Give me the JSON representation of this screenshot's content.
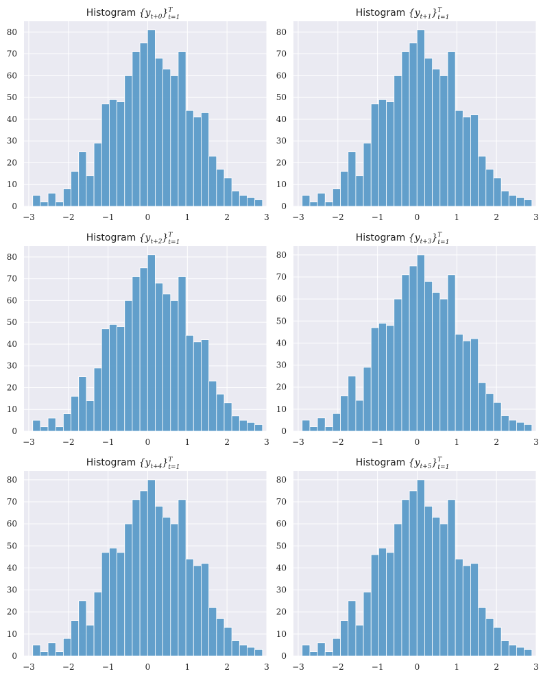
{
  "chart_data": [
    {
      "type": "bar",
      "title_prefix": "Histogram",
      "title_math": "{y",
      "title_sub": "t+0",
      "title_close": "}",
      "title_sup": "T",
      "title_lower": "t=1",
      "bin_start": -2.9,
      "bin_width": 0.1931,
      "values": [
        5,
        2,
        6,
        2,
        8,
        16,
        25,
        14,
        29,
        47,
        49,
        48,
        60,
        71,
        75,
        81,
        68,
        63,
        60,
        71,
        44,
        41,
        43,
        23,
        17,
        13,
        7,
        5,
        4,
        3
      ],
      "xlim": [
        -3.12,
        3.0
      ],
      "ylim": [
        0,
        85
      ],
      "xticks": [
        -3,
        -2,
        -1,
        0,
        1,
        2,
        3
      ],
      "yticks": [
        0,
        10,
        20,
        30,
        40,
        50,
        60,
        70,
        80
      ],
      "grid": true,
      "color": "#5b9bc8"
    },
    {
      "type": "bar",
      "title_prefix": "Histogram",
      "title_math": "{y",
      "title_sub": "t+1",
      "title_close": "}",
      "title_sup": "T",
      "title_lower": "t=1",
      "bin_start": -2.9,
      "bin_width": 0.1931,
      "values": [
        5,
        2,
        6,
        2,
        8,
        16,
        25,
        14,
        29,
        47,
        49,
        48,
        60,
        71,
        75,
        81,
        68,
        63,
        60,
        71,
        44,
        41,
        42,
        23,
        17,
        13,
        7,
        5,
        4,
        3
      ],
      "xlim": [
        -3.12,
        3.0
      ],
      "ylim": [
        0,
        85
      ],
      "xticks": [
        -3,
        -2,
        -1,
        0,
        1,
        2,
        3
      ],
      "yticks": [
        0,
        10,
        20,
        30,
        40,
        50,
        60,
        70,
        80
      ],
      "grid": true,
      "color": "#5b9bc8"
    },
    {
      "type": "bar",
      "title_prefix": "Histogram",
      "title_math": "{y",
      "title_sub": "t+2",
      "title_close": "}",
      "title_sup": "T",
      "title_lower": "t=1",
      "bin_start": -2.9,
      "bin_width": 0.1931,
      "values": [
        5,
        2,
        6,
        2,
        8,
        16,
        25,
        14,
        29,
        47,
        49,
        48,
        60,
        71,
        75,
        81,
        68,
        63,
        60,
        71,
        44,
        41,
        42,
        23,
        17,
        13,
        7,
        5,
        4,
        3
      ],
      "xlim": [
        -3.12,
        3.0
      ],
      "ylim": [
        0,
        85
      ],
      "xticks": [
        -3,
        -2,
        -1,
        0,
        1,
        2,
        3
      ],
      "yticks": [
        0,
        10,
        20,
        30,
        40,
        50,
        60,
        70,
        80
      ],
      "grid": true,
      "color": "#5b9bc8"
    },
    {
      "type": "bar",
      "title_prefix": "Histogram",
      "title_math": "{y",
      "title_sub": "t+3",
      "title_close": "}",
      "title_sup": "T",
      "title_lower": "t=1",
      "bin_start": -2.9,
      "bin_width": 0.1931,
      "values": [
        5,
        2,
        6,
        2,
        8,
        16,
        25,
        14,
        29,
        47,
        49,
        48,
        60,
        71,
        75,
        80,
        68,
        63,
        60,
        71,
        44,
        41,
        42,
        22,
        17,
        13,
        7,
        5,
        4,
        3
      ],
      "xlim": [
        -3.12,
        3.0
      ],
      "ylim": [
        0,
        84
      ],
      "xticks": [
        -3,
        -2,
        -1,
        0,
        1,
        2,
        3
      ],
      "yticks": [
        0,
        10,
        20,
        30,
        40,
        50,
        60,
        70,
        80
      ],
      "grid": true,
      "color": "#5b9bc8"
    },
    {
      "type": "bar",
      "title_prefix": "Histogram",
      "title_math": "{y",
      "title_sub": "t+4",
      "title_close": "}",
      "title_sup": "T",
      "title_lower": "t=1",
      "bin_start": -2.9,
      "bin_width": 0.1931,
      "values": [
        5,
        2,
        6,
        2,
        8,
        16,
        25,
        14,
        29,
        47,
        49,
        47,
        60,
        71,
        75,
        80,
        68,
        63,
        60,
        71,
        44,
        41,
        42,
        22,
        17,
        13,
        7,
        5,
        4,
        3
      ],
      "xlim": [
        -3.12,
        3.0
      ],
      "ylim": [
        0,
        84
      ],
      "xticks": [
        -3,
        -2,
        -1,
        0,
        1,
        2,
        3
      ],
      "yticks": [
        0,
        10,
        20,
        30,
        40,
        50,
        60,
        70,
        80
      ],
      "grid": true,
      "color": "#5b9bc8"
    },
    {
      "type": "bar",
      "title_prefix": "Histogram",
      "title_math": "{y",
      "title_sub": "t+5",
      "title_close": "}",
      "title_sup": "T",
      "title_lower": "t=1",
      "bin_start": -2.9,
      "bin_width": 0.1931,
      "values": [
        5,
        2,
        6,
        2,
        8,
        16,
        25,
        14,
        29,
        46,
        49,
        47,
        60,
        71,
        75,
        80,
        68,
        63,
        60,
        71,
        44,
        41,
        42,
        22,
        17,
        13,
        7,
        5,
        4,
        3
      ],
      "xlim": [
        -3.12,
        3.0
      ],
      "ylim": [
        0,
        84
      ],
      "xticks": [
        -3,
        -2,
        -1,
        0,
        1,
        2,
        3
      ],
      "yticks": [
        0,
        10,
        20,
        30,
        40,
        50,
        60,
        70,
        80
      ],
      "grid": true,
      "color": "#5b9bc8"
    }
  ]
}
